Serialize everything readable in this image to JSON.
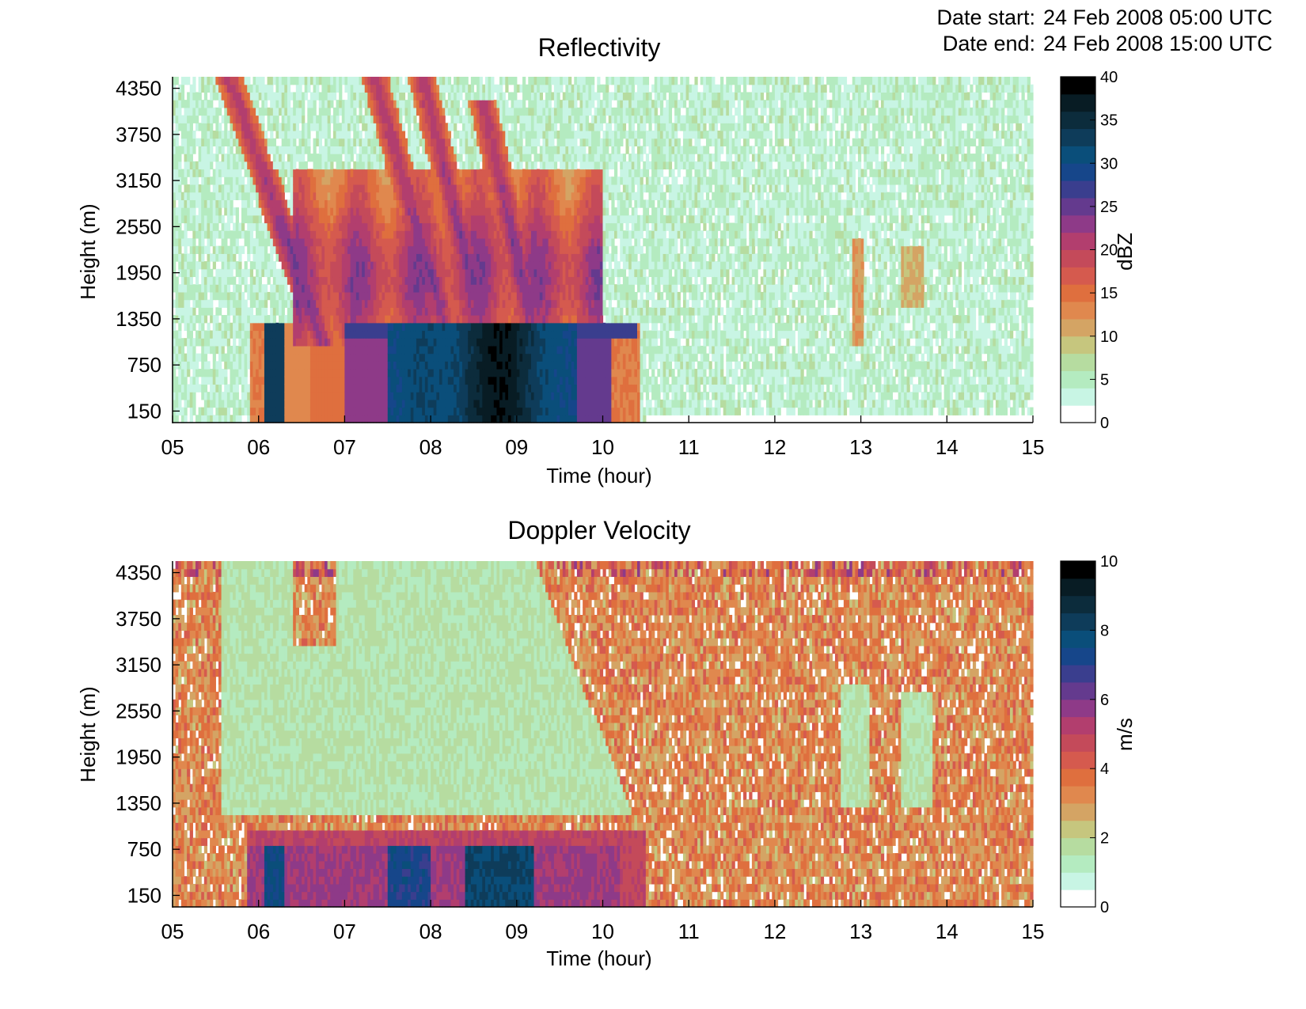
{
  "header": {
    "start_label": "Date start:",
    "start_value": "24 Feb 2008 05:00 UTC",
    "end_label": "Date end:",
    "end_value": "24 Feb 2008 15:00 UTC"
  },
  "colormap": [
    "#ffffff",
    "#c8f5e4",
    "#b4ebc0",
    "#b6dca0",
    "#c6c67e",
    "#d4a464",
    "#e0884e",
    "#df6f3e",
    "#d55a4e",
    "#c44a5a",
    "#b23e6e",
    "#8e3a88",
    "#643a8e",
    "#3a3e8e",
    "#16468a",
    "#0a4e7a",
    "#0e3c5a",
    "#0c2c3c",
    "#081c24",
    "#000000"
  ],
  "chart_data": [
    {
      "type": "heatmap",
      "title": "Reflectivity",
      "xlabel": "Time (hour)",
      "ylabel": "Height (m)",
      "colorbar_label": "dBZ",
      "xlim": [
        5,
        15
      ],
      "ylim": [
        0,
        4500
      ],
      "x_ticks": [
        5,
        6,
        7,
        8,
        9,
        10,
        11,
        12,
        13,
        14,
        15
      ],
      "x_tick_labels": [
        "05",
        "06",
        "07",
        "08",
        "09",
        "10",
        "11",
        "12",
        "13",
        "14",
        "15"
      ],
      "y_ticks": [
        150,
        750,
        1350,
        1950,
        2550,
        3150,
        3750,
        4350
      ],
      "y_tick_labels": [
        "150",
        "750",
        "1350",
        "1950",
        "2550",
        "3150",
        "3750",
        "4350"
      ],
      "color_range": [
        0,
        40
      ],
      "colorbar_ticks": [
        0,
        5,
        10,
        15,
        20,
        25,
        30,
        35,
        40
      ],
      "colorbar_tick_labels": [
        "0",
        "5",
        "10",
        "15",
        "20",
        "25",
        "30",
        "35",
        "40"
      ],
      "approx_features": {
        "background_noise": 4,
        "low_level_band": {
          "height_range": [
            150,
            1250
          ],
          "time_range": [
            5.9,
            10.45
          ],
          "values": [
            28,
            36
          ]
        },
        "max_core": {
          "time": 8.8,
          "value": 40
        },
        "upper_streaks": {
          "time_range": [
            5.5,
            10.0
          ],
          "values": [
            12,
            24
          ]
        },
        "weak_echoes": {
          "times": [
            12.95,
            13.6
          ],
          "value": 12
        }
      }
    },
    {
      "type": "heatmap",
      "title": "Doppler Velocity",
      "xlabel": "Time (hour)",
      "ylabel": "Height (m)",
      "colorbar_label": "m/s",
      "xlim": [
        5,
        15
      ],
      "ylim": [
        0,
        4500
      ],
      "x_ticks": [
        5,
        6,
        7,
        8,
        9,
        10,
        11,
        12,
        13,
        14,
        15
      ],
      "x_tick_labels": [
        "05",
        "06",
        "07",
        "08",
        "09",
        "10",
        "11",
        "12",
        "13",
        "14",
        "15"
      ],
      "y_ticks": [
        150,
        750,
        1350,
        1950,
        2550,
        3150,
        3750,
        4350
      ],
      "y_tick_labels": [
        "150",
        "750",
        "1350",
        "1950",
        "2550",
        "3150",
        "3750",
        "4350"
      ],
      "color_range": [
        0,
        10
      ],
      "colorbar_ticks": [
        0,
        2,
        4,
        6,
        8,
        10
      ],
      "colorbar_tick_labels": [
        "0",
        "2",
        "4",
        "6",
        "8",
        "10"
      ],
      "approx_features": {
        "background_noise": 3,
        "snow_region": {
          "height_range": [
            1100,
            4500
          ],
          "time_range": [
            5.6,
            10.5
          ],
          "value": 1.5
        },
        "rain_band": {
          "height_range": [
            150,
            950
          ],
          "time_range": [
            5.85,
            10.5
          ],
          "values": [
            5,
            8
          ]
        },
        "max_core": {
          "time": 8.8,
          "value": 8
        }
      }
    }
  ]
}
